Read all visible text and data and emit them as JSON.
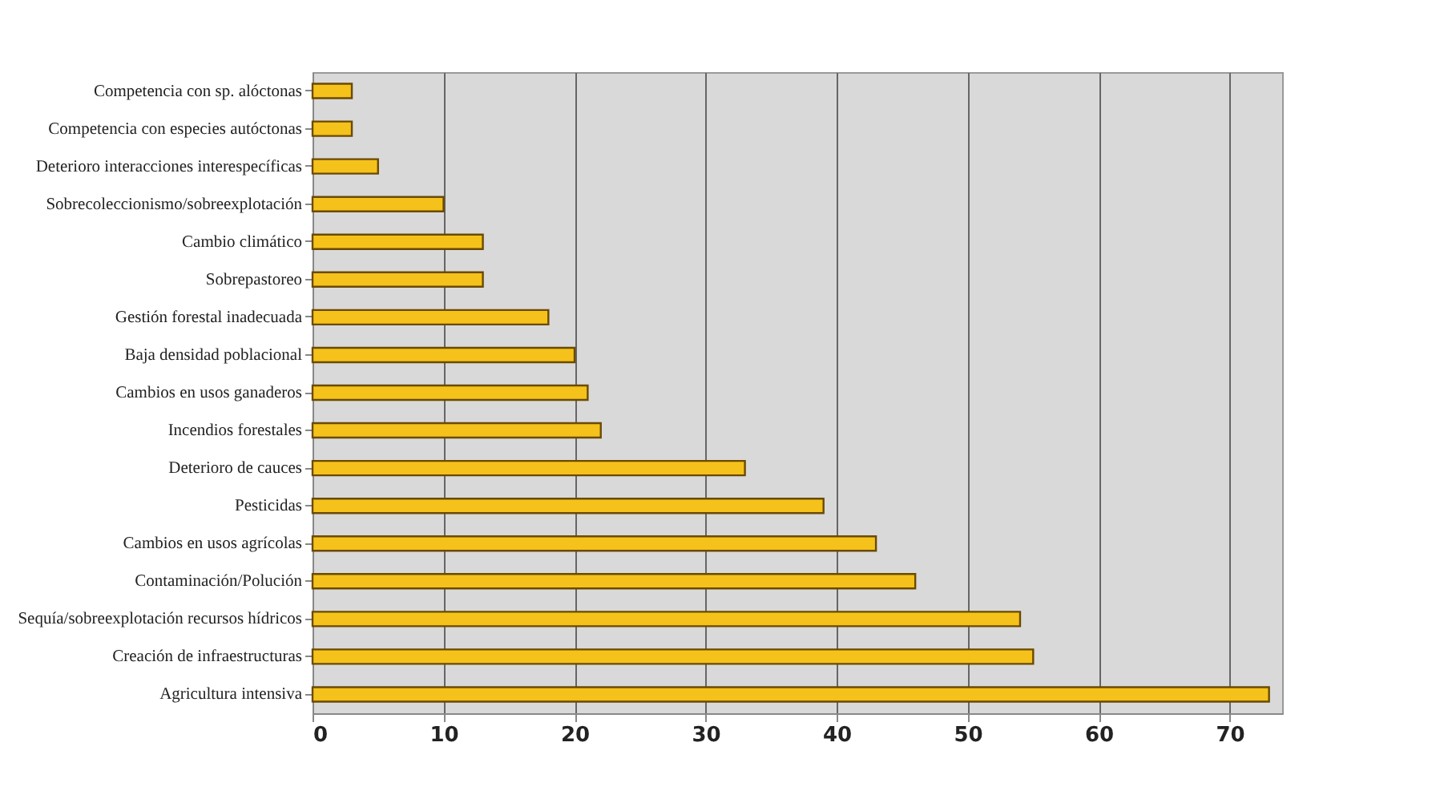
{
  "chart_data": {
    "type": "bar",
    "orientation": "horizontal",
    "categories": [
      "Competencia con sp. alóctonas",
      "Competencia con especies autóctonas",
      "Deterioro interacciones interespecíficas",
      "Sobrecoleccionismo/sobreexplotación",
      "Cambio climático",
      "Sobrepastoreo",
      "Gestión forestal inadecuada",
      "Baja densidad poblacional",
      "Cambios en usos ganaderos",
      "Incendios forestales",
      "Deterioro de cauces",
      "Pesticidas",
      "Cambios en usos agrícolas",
      "Contaminación/Polución",
      "Sequía/sobreexplotación recursos hídricos",
      "Creación de infraestructuras",
      "Agricultura intensiva"
    ],
    "values": [
      3,
      3,
      5,
      10,
      13,
      13,
      18,
      20,
      21,
      22,
      33,
      39,
      43,
      46,
      54,
      55,
      73
    ],
    "color": "#f5c21b",
    "xlim": [
      0,
      74
    ],
    "xticks": [
      0,
      10,
      20,
      30,
      40,
      50,
      60,
      70
    ],
    "grid": "x"
  }
}
